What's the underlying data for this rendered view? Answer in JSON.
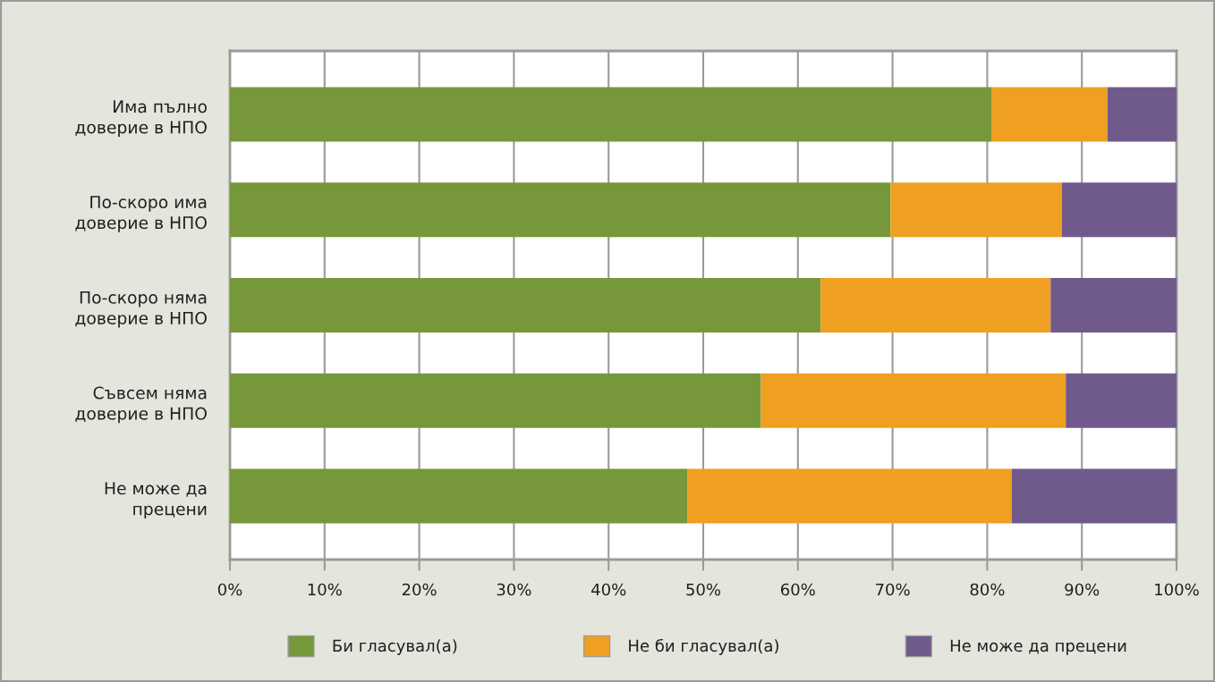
{
  "chart_data": {
    "type": "bar",
    "orientation": "horizontal",
    "stacked": true,
    "categories": [
      "Има пълно\nдоверие в НПО",
      "По-скоро има\nдоверие в НПО",
      "По-скоро няма\nдоверие в НПО",
      "Съвсем няма\nдоверие в НПО",
      "Не може да\nпрецени"
    ],
    "series": [
      {
        "name": "Би гласувал(а)",
        "color": "#76983a",
        "values": [
          80.5,
          69.8,
          62.4,
          56.1,
          48.3
        ]
      },
      {
        "name": "Не би гласувал(а)",
        "color": "#f0a020",
        "values": [
          12.2,
          18.1,
          24.3,
          32.2,
          34.3
        ]
      },
      {
        "name": "Не може да прецени",
        "color": "#705a8c",
        "values": [
          7.3,
          12.1,
          13.3,
          11.7,
          17.4
        ]
      }
    ],
    "xlim": [
      0,
      100
    ],
    "xticks": [
      {
        "value": 0,
        "label": "0%"
      },
      {
        "value": 10,
        "label": "10%"
      },
      {
        "value": 20,
        "label": "20%"
      },
      {
        "value": 30,
        "label": "30%"
      },
      {
        "value": 40,
        "label": "40%"
      },
      {
        "value": 50,
        "label": "50%"
      },
      {
        "value": 60,
        "label": "60%"
      },
      {
        "value": 70,
        "label": "70%"
      },
      {
        "value": 80,
        "label": "80%"
      },
      {
        "value": 90,
        "label": "90%"
      },
      {
        "value": 100,
        "label": "100%"
      }
    ],
    "grid": "x",
    "legend": "bottom"
  }
}
